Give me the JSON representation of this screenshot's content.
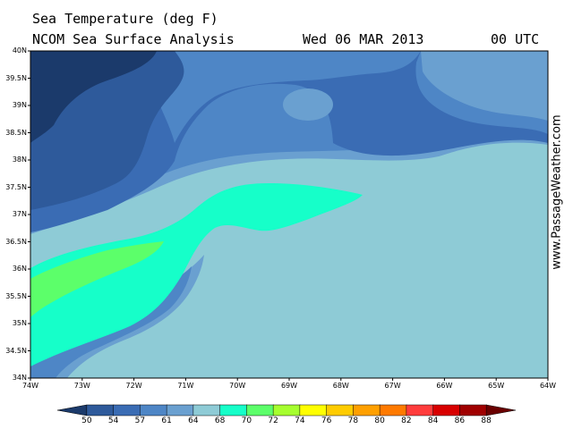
{
  "header": {
    "title": "Sea Temperature (deg F)",
    "analysis": "NCOM Sea Surface Analysis",
    "date": "Wed 06 MAR 2013",
    "time": "00 UTC"
  },
  "watermark": "www.PassageWeather.com",
  "axes": {
    "lat_labels": [
      "40N",
      "39.5N",
      "39N",
      "38.5N",
      "38N",
      "37.5N",
      "37N",
      "36.5N",
      "36N",
      "35.5N",
      "35N",
      "34.5N",
      "34N"
    ],
    "lon_labels": [
      "74W",
      "73W",
      "72W",
      "71W",
      "70W",
      "69W",
      "68W",
      "67W",
      "66W",
      "65W",
      "64W"
    ]
  },
  "legend": {
    "labels": [
      "50",
      "54",
      "57",
      "61",
      "64",
      "68",
      "70",
      "72",
      "74",
      "76",
      "78",
      "80",
      "82",
      "84",
      "86",
      "88"
    ],
    "colors": [
      "#1b3a6b",
      "#2e5a9b",
      "#3a6cb4",
      "#4e86c6",
      "#6aa0d0",
      "#8ecbd6",
      "#16ffc9",
      "#5cff6a",
      "#a6ff2e",
      "#ffff00",
      "#ffcc00",
      "#ffa000",
      "#ff7a00",
      "#ff3c3c",
      "#d80000",
      "#a00000",
      "#6a0000"
    ]
  }
}
